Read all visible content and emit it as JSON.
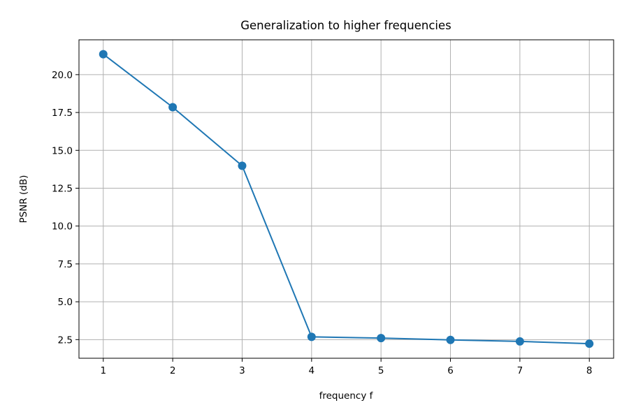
{
  "chart_data": {
    "type": "line",
    "title": "Generalization to higher frequencies",
    "xlabel": "frequency f",
    "ylabel": "PSNR (dB)",
    "x": [
      1,
      2,
      3,
      4,
      5,
      6,
      7,
      8
    ],
    "series": [
      {
        "values": [
          21.35,
          17.85,
          13.98,
          2.68,
          2.6,
          2.48,
          2.38,
          2.23
        ],
        "color": "#1f77b4",
        "marker": "circle"
      }
    ],
    "xticks": [
      1,
      2,
      3,
      4,
      5,
      6,
      7,
      8
    ],
    "xtick_labels": [
      "1",
      "2",
      "3",
      "4",
      "5",
      "6",
      "7",
      "8"
    ],
    "yticks": [
      2.5,
      5.0,
      7.5,
      10.0,
      12.5,
      15.0,
      17.5,
      20.0
    ],
    "ytick_labels": [
      "2.5",
      "5.0",
      "7.5",
      "10.0",
      "12.5",
      "15.0",
      "17.5",
      "20.0"
    ],
    "xlim": [
      0.65,
      8.35
    ],
    "ylim": [
      1.27,
      22.3
    ],
    "grid": true,
    "grid_color": "#b0b0b0"
  }
}
